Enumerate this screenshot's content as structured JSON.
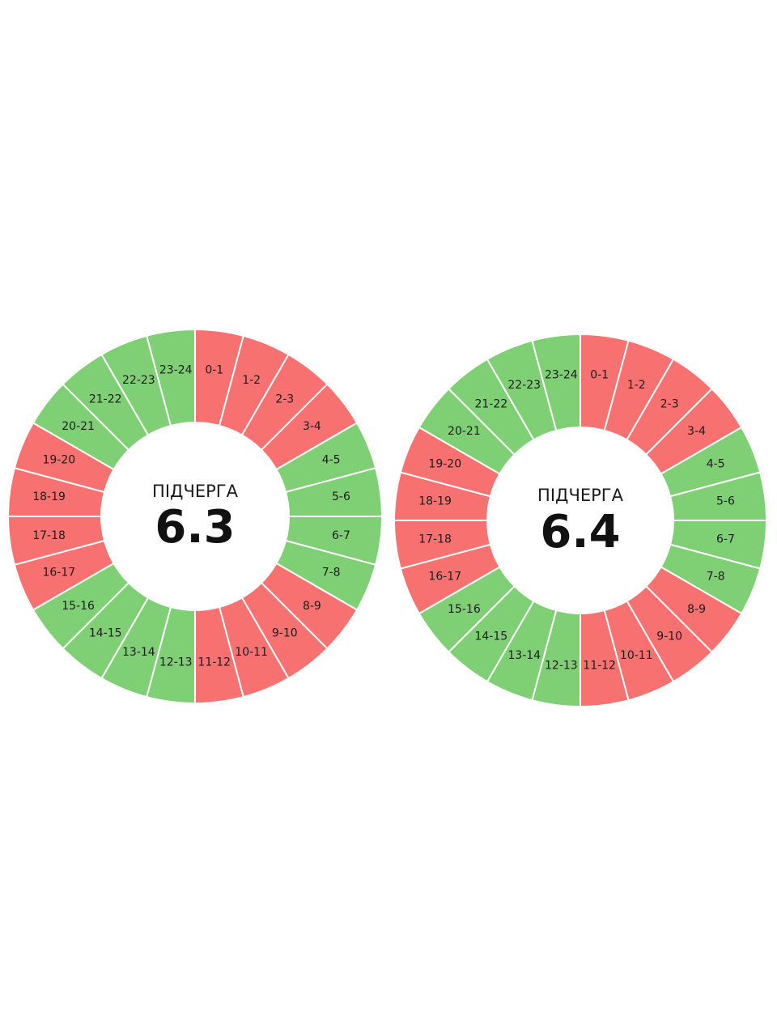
{
  "colors": {
    "on": "#7fcf75",
    "off": "#f87171",
    "separator": "#ffffff"
  },
  "chart_data": [
    {
      "type": "pie",
      "caption": "ПІДЧЕРГА",
      "title": "6.3",
      "categories": [
        "0-1",
        "1-2",
        "2-3",
        "3-4",
        "4-5",
        "5-6",
        "6-7",
        "7-8",
        "8-9",
        "9-10",
        "10-11",
        "11-12",
        "12-13",
        "13-14",
        "14-15",
        "15-16",
        "16-17",
        "17-18",
        "18-19",
        "19-20",
        "20-21",
        "21-22",
        "22-23",
        "23-24"
      ],
      "values": [
        1,
        1,
        1,
        1,
        1,
        1,
        1,
        1,
        1,
        1,
        1,
        1,
        1,
        1,
        1,
        1,
        1,
        1,
        1,
        1,
        1,
        1,
        1,
        1
      ],
      "status": [
        "off",
        "off",
        "off",
        "off",
        "on",
        "on",
        "on",
        "on",
        "off",
        "off",
        "off",
        "off",
        "on",
        "on",
        "on",
        "on",
        "off",
        "off",
        "off",
        "off",
        "on",
        "on",
        "on",
        "on"
      ]
    },
    {
      "type": "pie",
      "caption": "ПІДЧЕРГА",
      "title": "6.4",
      "categories": [
        "0-1",
        "1-2",
        "2-3",
        "3-4",
        "4-5",
        "5-6",
        "6-7",
        "7-8",
        "8-9",
        "9-10",
        "10-11",
        "11-12",
        "12-13",
        "13-14",
        "14-15",
        "15-16",
        "16-17",
        "17-18",
        "18-19",
        "19-20",
        "20-21",
        "21-22",
        "22-23",
        "23-24"
      ],
      "values": [
        1,
        1,
        1,
        1,
        1,
        1,
        1,
        1,
        1,
        1,
        1,
        1,
        1,
        1,
        1,
        1,
        1,
        1,
        1,
        1,
        1,
        1,
        1,
        1
      ],
      "status": [
        "off",
        "off",
        "off",
        "off",
        "on",
        "on",
        "on",
        "on",
        "off",
        "off",
        "off",
        "off",
        "on",
        "on",
        "on",
        "on",
        "off",
        "off",
        "off",
        "off",
        "on",
        "on",
        "on",
        "on"
      ]
    }
  ]
}
